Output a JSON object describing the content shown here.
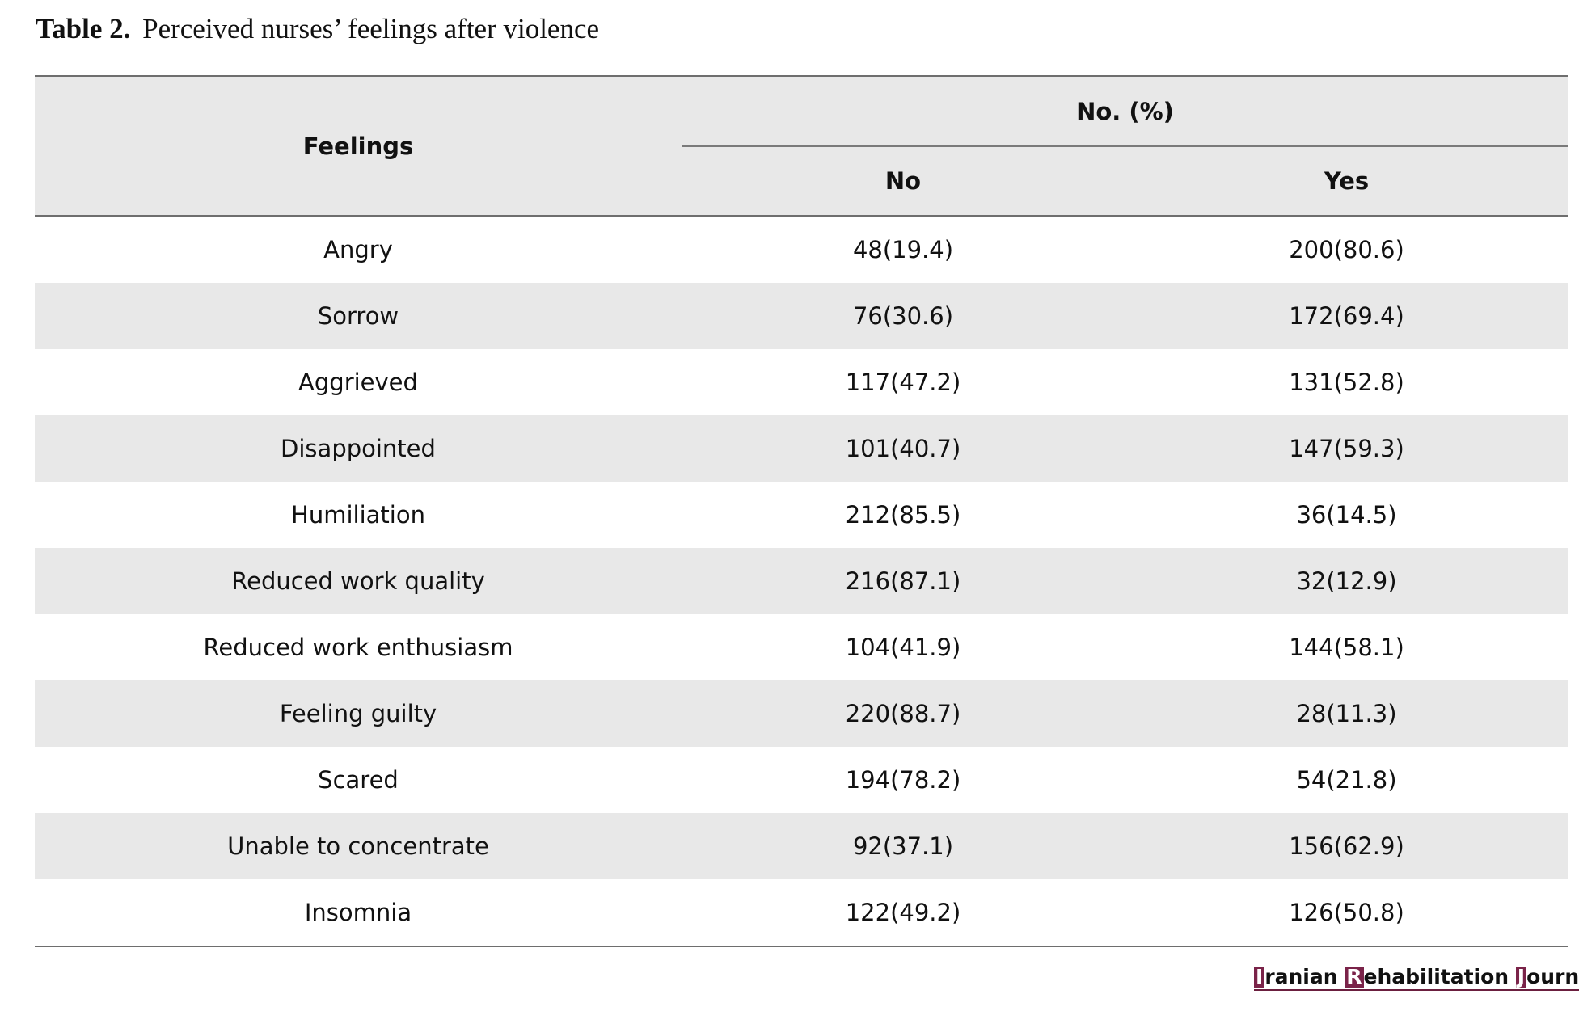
{
  "caption": {
    "label": "Table 2.",
    "title": "Perceived nurses’ feelings after violence"
  },
  "table": {
    "header": {
      "feelings": "Feelings",
      "group": "No. (%)",
      "no": "No",
      "yes": "Yes"
    },
    "rows": [
      {
        "feeling": "Angry",
        "no": "48(19.4)",
        "yes": "200(80.6)"
      },
      {
        "feeling": "Sorrow",
        "no": "76(30.6)",
        "yes": "172(69.4)"
      },
      {
        "feeling": "Aggrieved",
        "no": "117(47.2)",
        "yes": "131(52.8)"
      },
      {
        "feeling": "Disappointed",
        "no": "101(40.7)",
        "yes": "147(59.3)"
      },
      {
        "feeling": "Humiliation",
        "no": "212(85.5)",
        "yes": "36(14.5)"
      },
      {
        "feeling": "Reduced work quality",
        "no": "216(87.1)",
        "yes": "32(12.9)"
      },
      {
        "feeling": "Reduced work enthusiasm",
        "no": "104(41.9)",
        "yes": "144(58.1)"
      },
      {
        "feeling": "Feeling guilty",
        "no": "220(88.7)",
        "yes": "28(11.3)"
      },
      {
        "feeling": "Scared",
        "no": "194(78.2)",
        "yes": "54(21.8)"
      },
      {
        "feeling": "Unable to concentrate",
        "no": "92(37.1)",
        "yes": "156(62.9)"
      },
      {
        "feeling": "Insomnia",
        "no": "122(49.2)",
        "yes": "126(50.8)"
      }
    ]
  },
  "journal_logo": {
    "word1_initial": "I",
    "word1_rest": "ranian ",
    "word2_initial": "R",
    "word2_rest": "ehabilitation ",
    "word3_initial": "J",
    "word3_rest": "ournal",
    "accent_color": "#7a2349"
  }
}
